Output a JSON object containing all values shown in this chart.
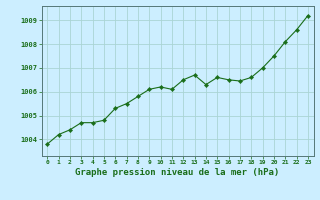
{
  "x": [
    0,
    1,
    2,
    3,
    4,
    5,
    6,
    7,
    8,
    9,
    10,
    11,
    12,
    13,
    14,
    15,
    16,
    17,
    18,
    19,
    20,
    21,
    22,
    23
  ],
  "y": [
    1003.8,
    1004.2,
    1004.4,
    1004.7,
    1004.7,
    1004.8,
    1005.3,
    1005.5,
    1005.8,
    1006.1,
    1006.2,
    1006.1,
    1006.5,
    1006.7,
    1006.3,
    1006.6,
    1006.5,
    1006.45,
    1006.6,
    1007.0,
    1007.5,
    1008.1,
    1008.6,
    1009.2
  ],
  "line_color": "#1a6e1a",
  "marker": "D",
  "marker_size": 2.2,
  "bg_color": "#cceeff",
  "grid_color": "#aad4d4",
  "xlabel": "Graphe pression niveau de la mer (hPa)",
  "xlabel_color": "#1a6e1a",
  "tick_color": "#1a6e1a",
  "yticks": [
    1004,
    1005,
    1006,
    1007,
    1008,
    1009
  ],
  "ylim": [
    1003.3,
    1009.6
  ],
  "xlim": [
    -0.5,
    23.5
  ],
  "xticks": [
    0,
    1,
    2,
    3,
    4,
    5,
    6,
    7,
    8,
    9,
    10,
    11,
    12,
    13,
    14,
    15,
    16,
    17,
    18,
    19,
    20,
    21,
    22,
    23
  ]
}
